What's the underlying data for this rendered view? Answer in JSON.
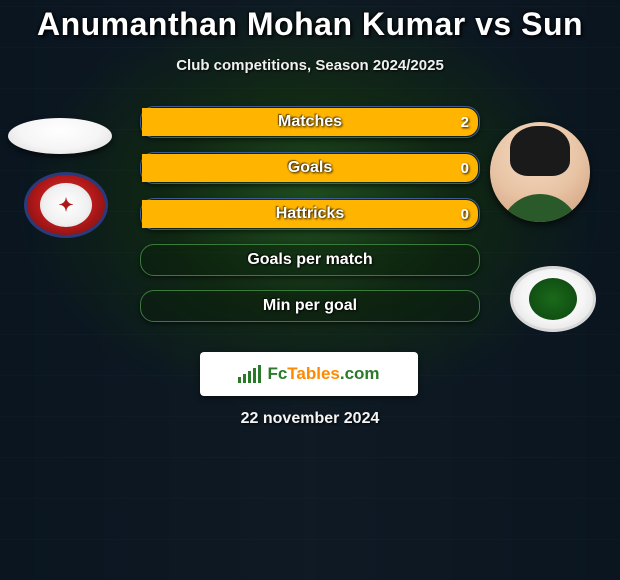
{
  "title": "Anumanthan Mohan Kumar vs Sun",
  "subtitle": "Club competitions, Season 2024/2025",
  "date": "22 november 2024",
  "branding": {
    "fc": "Fc",
    "tables": "Tables",
    "com": ".com"
  },
  "colors": {
    "left_player": "#3a5a9a",
    "right_player": "#ffb400",
    "border_green": "#3a7a3a",
    "border_blue": "#3a5a9a"
  },
  "chart": {
    "rows": [
      {
        "label": "Matches",
        "left": "",
        "right": "2",
        "left_pct": 0,
        "right_pct": 100,
        "border": "blue"
      },
      {
        "label": "Goals",
        "left": "",
        "right": "0",
        "left_pct": 0,
        "right_pct": 100,
        "border": "blue"
      },
      {
        "label": "Hattricks",
        "left": "",
        "right": "0",
        "left_pct": 0,
        "right_pct": 100,
        "border": "blue"
      },
      {
        "label": "Goals per match",
        "left": "",
        "right": "",
        "left_pct": 0,
        "right_pct": 0,
        "border": "green"
      },
      {
        "label": "Min per goal",
        "left": "",
        "right": "",
        "left_pct": 0,
        "right_pct": 0,
        "border": "green"
      }
    ]
  }
}
